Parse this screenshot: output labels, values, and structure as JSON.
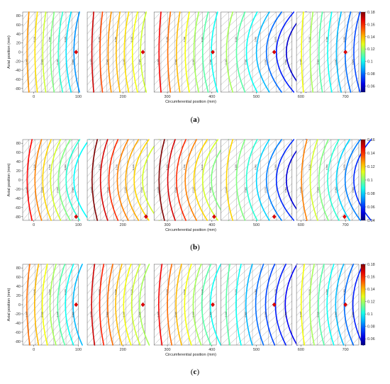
{
  "figure": {
    "panels": [
      {
        "label_open": "(",
        "label_letter": "a",
        "label_close": ")",
        "ylabel": "Axial position (mm)",
        "xlabel": "Circumferential position (mm)",
        "y_ticks": [
          80,
          60,
          40,
          20,
          0,
          -20,
          -40,
          -60,
          -80
        ],
        "x_ticks": [
          0,
          100,
          200,
          300,
          400,
          500,
          600,
          700
        ],
        "colorbar_ticks": [
          0.18,
          0.16,
          0.14,
          0.12,
          0.1,
          0.08,
          0.06
        ],
        "colorbar_range": [
          0.05,
          0.18
        ]
      },
      {
        "label_open": "(",
        "label_letter": "b",
        "label_close": ")",
        "ylabel": "Axial position (mm)",
        "xlabel": "Circumferential position (mm)",
        "y_ticks": [
          80,
          60,
          40,
          20,
          0,
          -20,
          -40,
          -60,
          -80
        ],
        "x_ticks": [
          0,
          100,
          200,
          300,
          400,
          500,
          600,
          700
        ],
        "colorbar_ticks": [
          0.16,
          0.14,
          0.12,
          0.1,
          0.08,
          0.06,
          0.04
        ],
        "colorbar_range": [
          0.04,
          0.16
        ]
      },
      {
        "label_open": "(",
        "label_letter": "c",
        "label_close": ")",
        "ylabel": "Axial position (mm)",
        "xlabel": "Circumferential position (mm)",
        "y_ticks": [
          80,
          60,
          40,
          20,
          0,
          -20,
          -40,
          -60,
          -80
        ],
        "x_ticks": [
          0,
          100,
          200,
          300,
          400,
          500,
          600,
          700
        ],
        "colorbar_ticks": [
          0.18,
          0.16,
          0.14,
          0.12,
          0.1,
          0.08,
          0.06
        ],
        "colorbar_range": [
          0.05,
          0.18
        ]
      }
    ]
  },
  "chart_data": [
    {
      "type": "heatmap",
      "panel": "a",
      "xlabel": "Circumferential position (mm)",
      "ylabel": "Axial position (mm)",
      "xlim": [
        -25,
        730
      ],
      "ylim": [
        -88,
        88
      ],
      "colormap": "jet",
      "colorbar_range": [
        0.05,
        0.18
      ],
      "segments": [
        {
          "x_range": [
            -25,
            100
          ],
          "levels": [
            0.145,
            0.135,
            0.125,
            0.115,
            0.105,
            0.095,
            0.085
          ],
          "curve": "mild",
          "red_marker": [
            95,
            0
          ]
        },
        {
          "x_range": [
            120,
            250
          ],
          "levels": [
            0.17,
            0.155,
            0.145,
            0.14,
            0.135,
            0.13,
            0.125
          ],
          "curve": "mild",
          "red_marker": [
            245,
            0
          ]
        },
        {
          "x_range": [
            270,
            410
          ],
          "levels": [
            0.165,
            0.15,
            0.14,
            0.13,
            0.12,
            0.11,
            0.1
          ],
          "curve": "mild",
          "red_marker": [
            402,
            0
          ]
        },
        {
          "x_range": [
            420,
            580
          ],
          "levels": [
            0.12,
            0.11,
            0.1,
            0.09,
            0.08,
            0.07,
            0.06
          ],
          "curve": "strong",
          "red_marker": [
            540,
            0
          ]
        },
        {
          "x_range": [
            590,
            730
          ],
          "levels": [
            0.13,
            0.12,
            0.11,
            0.1,
            0.09,
            0.08,
            0.075
          ],
          "curve": "mild",
          "red_marker": [
            700,
            0
          ]
        }
      ]
    },
    {
      "type": "heatmap",
      "panel": "b",
      "xlabel": "Circumferential position (mm)",
      "ylabel": "Axial position (mm)",
      "xlim": [
        -25,
        730
      ],
      "ylim": [
        -88,
        88
      ],
      "colormap": "jet",
      "colorbar_range": [
        0.04,
        0.16
      ],
      "segments": [
        {
          "x_range": [
            -25,
            100
          ],
          "levels": [
            0.145,
            0.13,
            0.12,
            0.11,
            0.1,
            0.09,
            0.085
          ],
          "curve": "strong",
          "red_marker": [
            95,
            -80
          ]
        },
        {
          "x_range": [
            120,
            255
          ],
          "levels": [
            0.16,
            0.15,
            0.14,
            0.13,
            0.125,
            0.12,
            0.11
          ],
          "curve": "strong",
          "red_marker": [
            252,
            -80
          ]
        },
        {
          "x_range": [
            270,
            410
          ],
          "levels": [
            0.16,
            0.15,
            0.14,
            0.13,
            0.12,
            0.11,
            0.1
          ],
          "curve": "strong",
          "red_marker": [
            405,
            -80
          ]
        },
        {
          "x_range": [
            420,
            580
          ],
          "levels": [
            0.12,
            0.1,
            0.09,
            0.08,
            0.07,
            0.06,
            0.05
          ],
          "curve": "strong",
          "red_marker": [
            540,
            -80
          ]
        },
        {
          "x_range": [
            590,
            730
          ],
          "levels": [
            0.13,
            0.11,
            0.1,
            0.09,
            0.08,
            0.07,
            0.06
          ],
          "curve": "strong",
          "red_marker": [
            698,
            -80
          ]
        }
      ]
    },
    {
      "type": "heatmap",
      "panel": "c",
      "xlabel": "Circumferential position (mm)",
      "ylabel": "Axial position (mm)",
      "xlim": [
        -25,
        730
      ],
      "ylim": [
        -88,
        88
      ],
      "colormap": "jet",
      "colorbar_range": [
        0.05,
        0.18
      ],
      "segments": [
        {
          "x_range": [
            -25,
            100
          ],
          "levels": [
            0.15,
            0.14,
            0.13,
            0.12,
            0.11,
            0.1,
            0.09
          ],
          "curve": "waist",
          "red_marker": [
            95,
            0
          ]
        },
        {
          "x_range": [
            120,
            250
          ],
          "levels": [
            0.17,
            0.16,
            0.15,
            0.14,
            0.13,
            0.125,
            0.12
          ],
          "curve": "waist",
          "red_marker": [
            245,
            0
          ]
        },
        {
          "x_range": [
            270,
            410
          ],
          "levels": [
            0.165,
            0.15,
            0.14,
            0.13,
            0.12,
            0.11,
            0.1
          ],
          "curve": "waist",
          "red_marker": [
            402,
            0
          ]
        },
        {
          "x_range": [
            420,
            580
          ],
          "levels": [
            0.11,
            0.1,
            0.09,
            0.08,
            0.075,
            0.07,
            0.065
          ],
          "curve": "waist",
          "red_marker": [
            540,
            0
          ]
        },
        {
          "x_range": [
            590,
            730
          ],
          "levels": [
            0.13,
            0.12,
            0.11,
            0.1,
            0.09,
            0.08,
            0.07
          ],
          "curve": "waist",
          "red_marker": [
            700,
            0
          ]
        }
      ]
    }
  ]
}
